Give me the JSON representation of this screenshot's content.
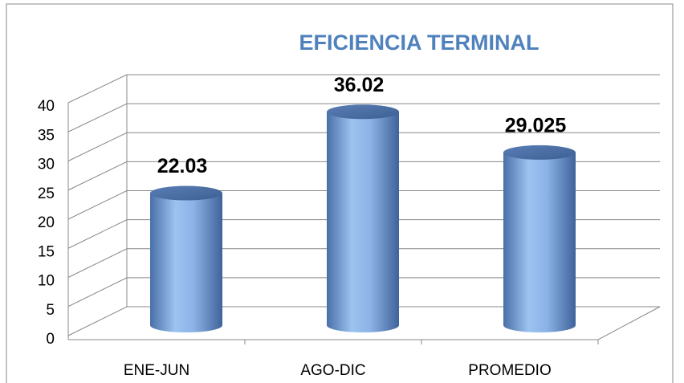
{
  "chart_data": {
    "type": "bar",
    "title": "EFICIENCIA TERMINAL",
    "categories": [
      "ENE-JUN",
      "AGO-DIC",
      "PROMEDIO"
    ],
    "values": [
      22.03,
      36.02,
      29.025
    ],
    "color": "#4f81bd",
    "ylim": [
      0,
      40
    ],
    "yticks": [
      0,
      5,
      10,
      15,
      20,
      25,
      30,
      35,
      40
    ],
    "grid": true
  }
}
